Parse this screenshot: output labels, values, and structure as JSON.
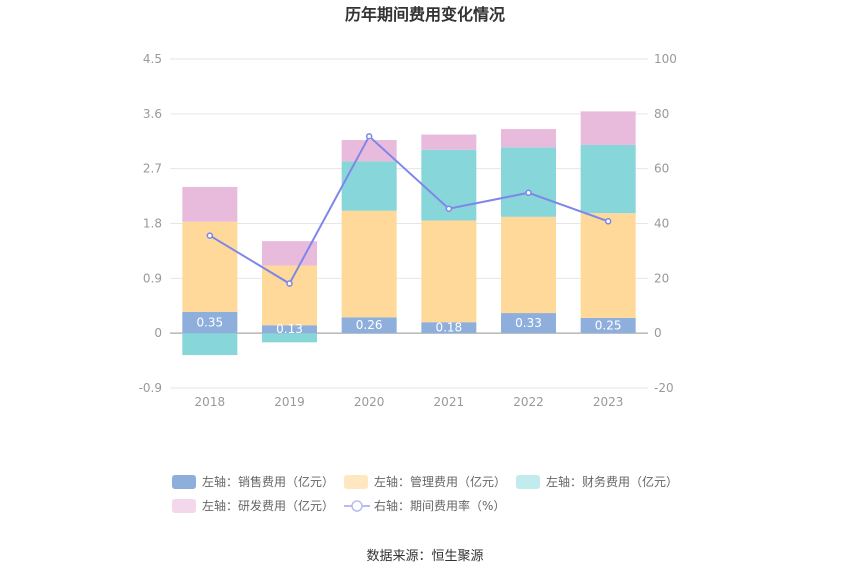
{
  "chart_data": {
    "type": "bar",
    "title": "历年期间费用变化情况",
    "source": "数据来源：恒生聚源",
    "categories": [
      "2018",
      "2019",
      "2020",
      "2021",
      "2022",
      "2023"
    ],
    "left_axis": {
      "min": -0.9,
      "max": 4.5,
      "ticks": [
        "4.5",
        "3.6",
        "2.7",
        "1.8",
        "0.9",
        "0",
        "-0.9"
      ]
    },
    "right_axis": {
      "min": -20,
      "max": 100,
      "ticks": [
        "100",
        "80",
        "60",
        "40",
        "20",
        "0",
        "-20"
      ]
    },
    "series": [
      {
        "name": "左轴：销售费用（亿元）",
        "type": "bar",
        "color": "#8eaedc",
        "values": [
          0.35,
          0.13,
          0.26,
          0.18,
          0.33,
          0.25
        ],
        "labels": [
          "0.35",
          "0.13",
          "0.26",
          "0.18",
          "0.33",
          "0.25"
        ]
      },
      {
        "name": "左轴：管理费用（亿元）",
        "type": "bar",
        "color": "#ffd99a",
        "values": [
          1.48,
          0.98,
          1.75,
          1.67,
          1.58,
          1.72
        ]
      },
      {
        "name": "左轴：财务费用（亿元）",
        "type": "bar",
        "color": "#87d6d9",
        "values": [
          -0.36,
          -0.15,
          0.81,
          1.16,
          1.14,
          1.12
        ]
      },
      {
        "name": "左轴：研发费用（亿元）",
        "type": "bar",
        "color": "#e8bbdc",
        "values": [
          0.57,
          0.4,
          0.35,
          0.25,
          0.3,
          0.55
        ]
      },
      {
        "name": "右轴：期间费用率（%）",
        "type": "line",
        "color": "#7f86e9",
        "values": [
          35.6,
          18.1,
          71.8,
          45.4,
          51.2,
          40.8
        ]
      }
    ],
    "grid": true,
    "legend_position": "bottom"
  }
}
